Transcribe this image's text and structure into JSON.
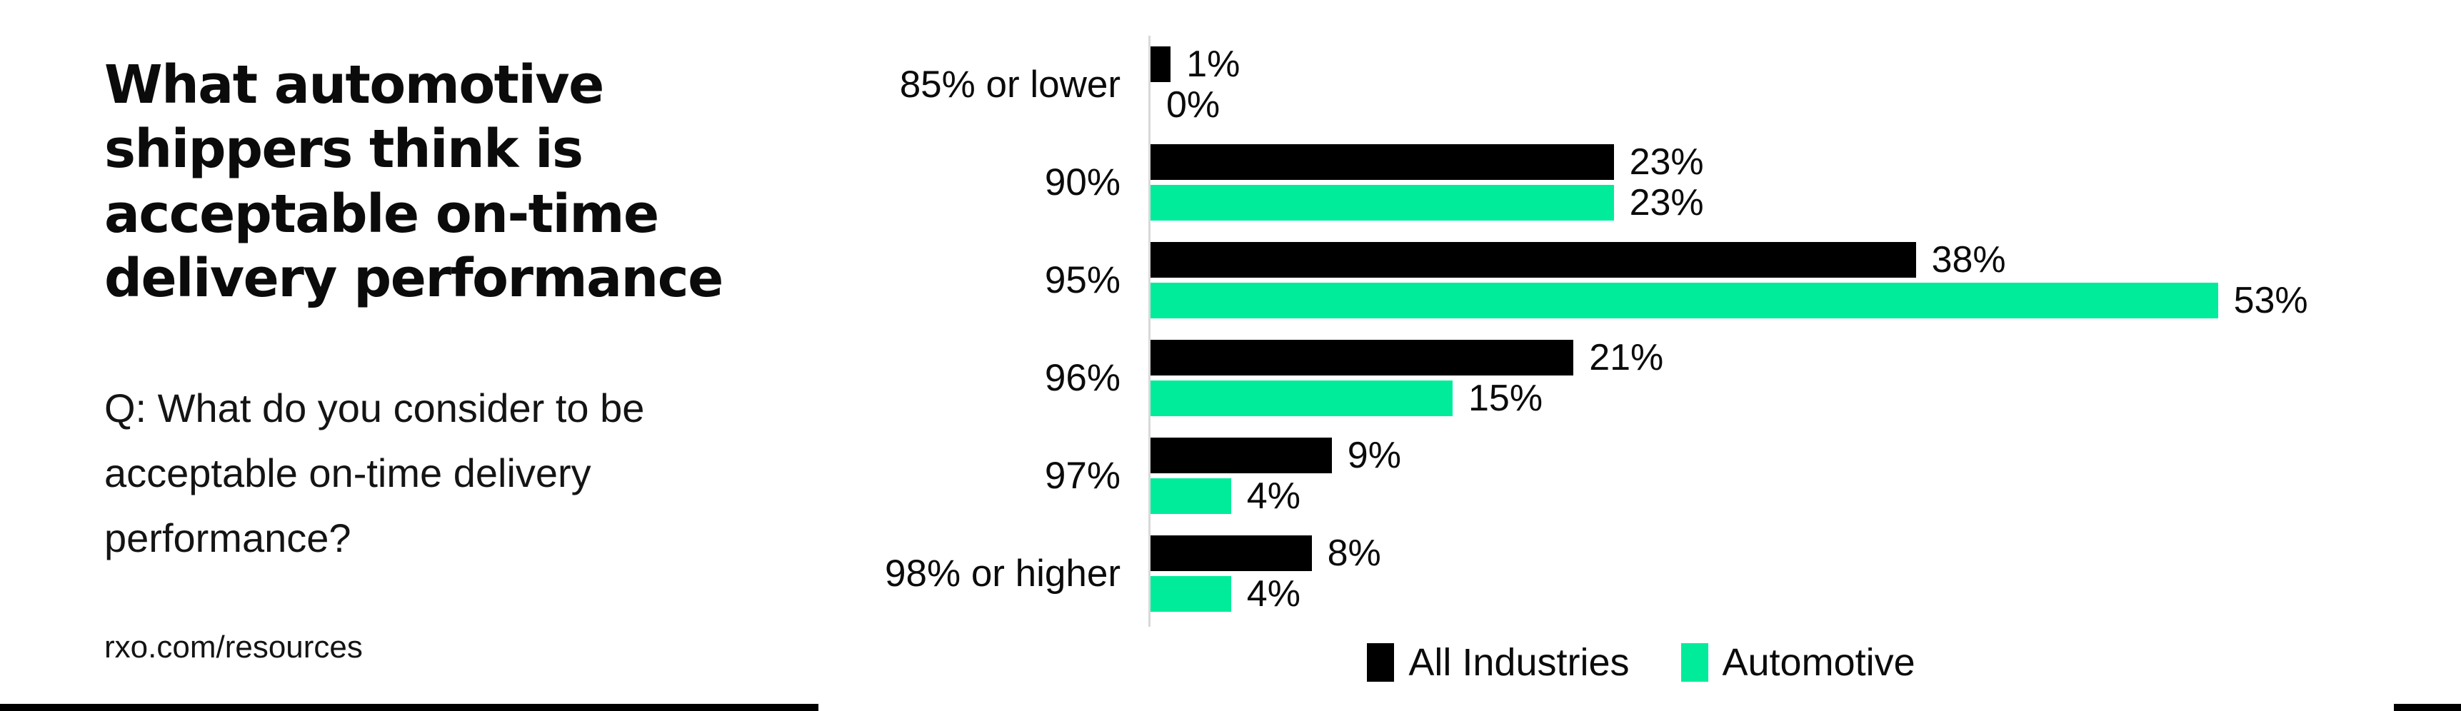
{
  "panel": {
    "title_lines": [
      "What automotive",
      "shippers think is",
      "acceptable on-time",
      "delivery performance"
    ],
    "question_lines": [
      "Q: What do you consider to be",
      "acceptable on-time delivery",
      "performance?"
    ],
    "footer": "rxo.com/resources"
  },
  "colors": {
    "all_industries": "#000000",
    "automotive": "#00EC9B",
    "axis_line": "#D9D9D9",
    "text": "#0B0B0B",
    "background": "#FFFFFF"
  },
  "chart_data": {
    "type": "bar",
    "orientation": "horizontal",
    "title": "What automotive shippers think is acceptable on-time delivery performance",
    "question": "Q: What do you consider to be acceptable on-time delivery performance?",
    "categories": [
      "85% or lower",
      "90%",
      "95%",
      "96%",
      "97%",
      "98% or higher"
    ],
    "series": [
      {
        "name": "All Industries",
        "color": "#000000",
        "values": [
          1,
          23,
          38,
          21,
          9,
          8
        ]
      },
      {
        "name": "Automotive",
        "color": "#00EC9B",
        "values": [
          0,
          23,
          53,
          15,
          4,
          4
        ]
      }
    ],
    "value_suffix": "%",
    "data_labels": true,
    "xlim": [
      0,
      53
    ],
    "grid": false,
    "legend_position": "bottom"
  },
  "legend": {
    "items": [
      {
        "label": "All Industries",
        "color": "#000000"
      },
      {
        "label": "Automotive",
        "color": "#00EC9B"
      }
    ]
  }
}
